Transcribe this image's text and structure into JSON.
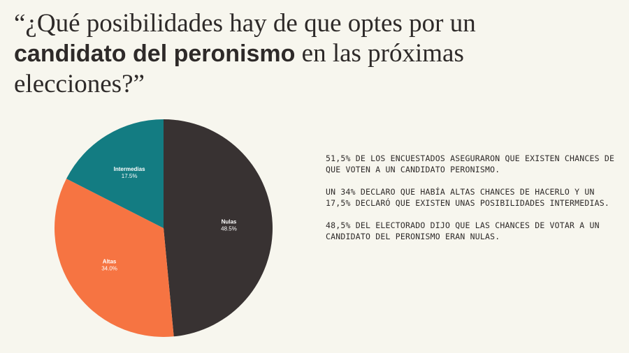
{
  "header": {
    "title_pre": "“¿Qué posibilidades hay de que optes por un ",
    "title_bold": "candidato del peronismo",
    "title_post": " en las próximas elecciones?”"
  },
  "chart_data": {
    "type": "pie",
    "slices": [
      {
        "label": "Nulas",
        "value": 48.5,
        "display": "48.5%",
        "color": "#383232"
      },
      {
        "label": "Altas",
        "value": 34.0,
        "display": "34.0%",
        "color": "#f67442"
      },
      {
        "label": "Intermedias",
        "value": 17.5,
        "display": "17.5%",
        "color": "#137c82"
      }
    ]
  },
  "notes": [
    "51,5% DE LOS ENCUESTADOS ASEGURARON QUE EXISTEN CHANCES DE QUE VOTEN A UN CANDIDATO PERONISMO.",
    "UN 34% DECLARO QUE HABÍA ALTAS CHANCES DE HACERLO Y UN 17,5% DECLARÓ QUE EXISTEN UNAS POSIBILIDADES INTERMEDIAS.",
    "48,5% DEL ELECTORADO DIJO QUE LAS CHANCES DE VOTAR A UN CANDIDATO DEL PERONISMO ERAN NULAS."
  ]
}
